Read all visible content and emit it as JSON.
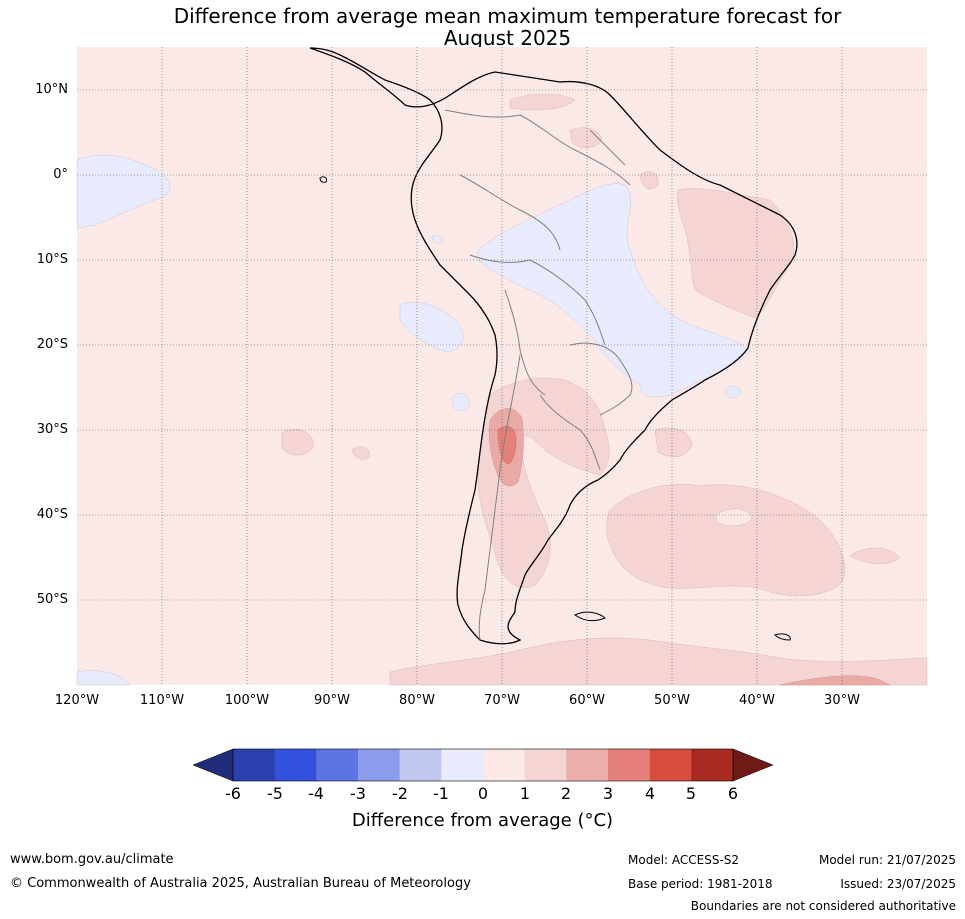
{
  "title": {
    "line1": "Difference from average mean maximum temperature forecast for",
    "line2": "August 2025"
  },
  "map": {
    "lat_labels": [
      "10°N",
      "0°",
      "10°S",
      "20°S",
      "30°S",
      "40°S",
      "50°S"
    ],
    "lon_labels": [
      "120°W",
      "110°W",
      "100°W",
      "90°W",
      "80°W",
      "70°W",
      "60°W",
      "50°W",
      "40°W",
      "30°W"
    ],
    "extent": {
      "lon_min": -120,
      "lon_max": -20,
      "lat_min": -60,
      "lat_max": 15
    },
    "colors": {
      "ocean_land_0_1": "#fbe9e8",
      "anomaly_1_2": "#f4d5d3",
      "anomaly_2_3": "#e9a9a5",
      "anomaly_3_4": "#e5807a",
      "anomaly_neg1_0": "#e7ebfb"
    }
  },
  "colorbar": {
    "ticks": [
      "-6",
      "-5",
      "-4",
      "-3",
      "-2",
      "-1",
      "0",
      "1",
      "2",
      "3",
      "4",
      "5",
      "6"
    ],
    "colors": [
      "#1f2d7a",
      "#2b3fae",
      "#3252de",
      "#5d74e5",
      "#8c9cec",
      "#c1c9f3",
      "#e7ebfb",
      "#fbe9e8",
      "#f4d5d3",
      "#ebaeaa",
      "#e5807a",
      "#d84c40",
      "#a92a22",
      "#6e1a16"
    ],
    "title": "Difference from average (°C)"
  },
  "footer": {
    "url": "www.bom.gov.au/climate",
    "copyright": "© Commonwealth of Australia 2025, Australian Bureau of Meteorology",
    "model": "Model: ACCESS-S2",
    "base_period": "Base period: 1981-2018",
    "model_run": "Model run: 21/07/2025",
    "issued": "Issued: 23/07/2025",
    "disclaimer": "Boundaries are not considered authoritative"
  }
}
